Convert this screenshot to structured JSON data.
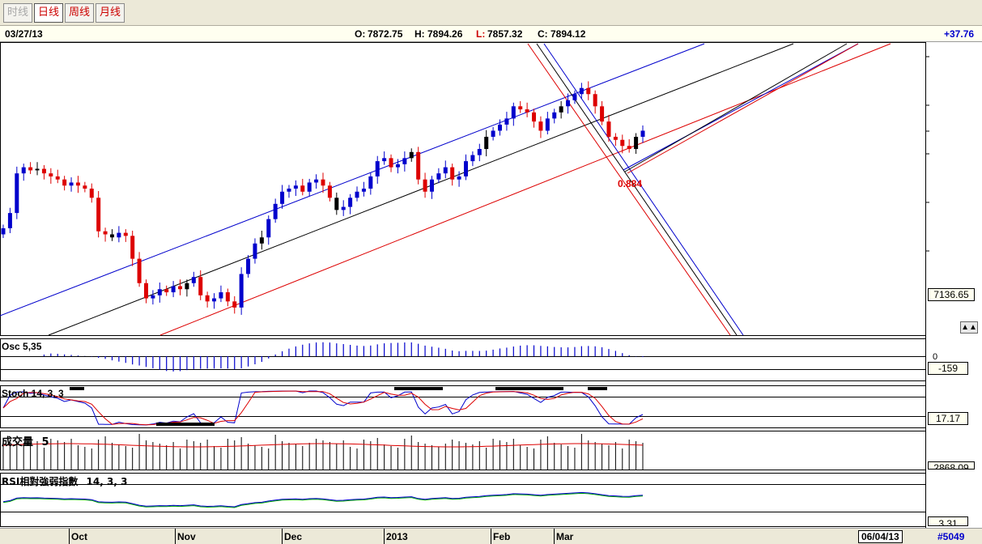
{
  "toolbar": {
    "buttons": [
      {
        "label": "时线",
        "state": "disabled"
      },
      {
        "label": "日线",
        "state": "active"
      },
      {
        "label": "周线",
        "state": "normal"
      },
      {
        "label": "月线",
        "state": "normal"
      }
    ]
  },
  "info": {
    "date": "03/27/13",
    "open_label": "O:",
    "open": "7872.75",
    "high_label": "H:",
    "high": "7894.26",
    "low_label": "L:",
    "low": "7857.32",
    "close_label": "C:",
    "close": "7894.12",
    "change": "+37.76"
  },
  "panels": {
    "price": {
      "axis_value": "7136.65",
      "annotation": "0.884"
    },
    "osc": {
      "label": "Osc 5,35",
      "zero_label": "0",
      "value": "-159"
    },
    "stoch": {
      "label": "Stoch 14, 3, 3",
      "value": "17.17"
    },
    "volume": {
      "label": "成交量",
      "param": "5",
      "value": "2868.09"
    },
    "rsi": {
      "label": "RSI相對強弱指數",
      "param": "14, 3, 3",
      "value": "3.31"
    }
  },
  "bottom": {
    "months": [
      "Oct",
      "Nov",
      "Dec",
      "2013",
      "Feb",
      "Mar"
    ],
    "end_date": "06/04/13",
    "code": "#5049"
  },
  "colors": {
    "up": "#0000cc",
    "down": "#dd0000",
    "neutral": "#000000",
    "channel_top": "#0000cc",
    "channel_mid": "#000000",
    "channel_bottom": "#dd0000"
  },
  "chart_data": {
    "type": "candlestick",
    "annotation": "0.884",
    "close_series_approx": [
      7300,
      7350,
      7480,
      7500,
      7490,
      7495,
      7480,
      7470,
      7460,
      7440,
      7450,
      7440,
      7430,
      7400,
      7290,
      7280,
      7270,
      7285,
      7275,
      7200,
      7120,
      7070,
      7080,
      7100,
      7090,
      7110,
      7100,
      7120,
      7140,
      7080,
      7060,
      7070,
      7090,
      7060,
      7040,
      7150,
      7200,
      7250,
      7270,
      7330,
      7380,
      7420,
      7430,
      7440,
      7420,
      7450,
      7460,
      7440,
      7400,
      7360,
      7370,
      7400,
      7420,
      7430,
      7470,
      7520,
      7530,
      7500,
      7510,
      7530,
      7550,
      7460,
      7420,
      7460,
      7480,
      7500,
      7460,
      7470,
      7520,
      7540,
      7560,
      7600,
      7620,
      7640,
      7660,
      7700,
      7690,
      7680,
      7650,
      7620,
      7660,
      7680,
      7700,
      7720,
      7740,
      7760,
      7740,
      7700,
      7650,
      7600,
      7590,
      7570,
      7560,
      7600,
      7620
    ]
  }
}
